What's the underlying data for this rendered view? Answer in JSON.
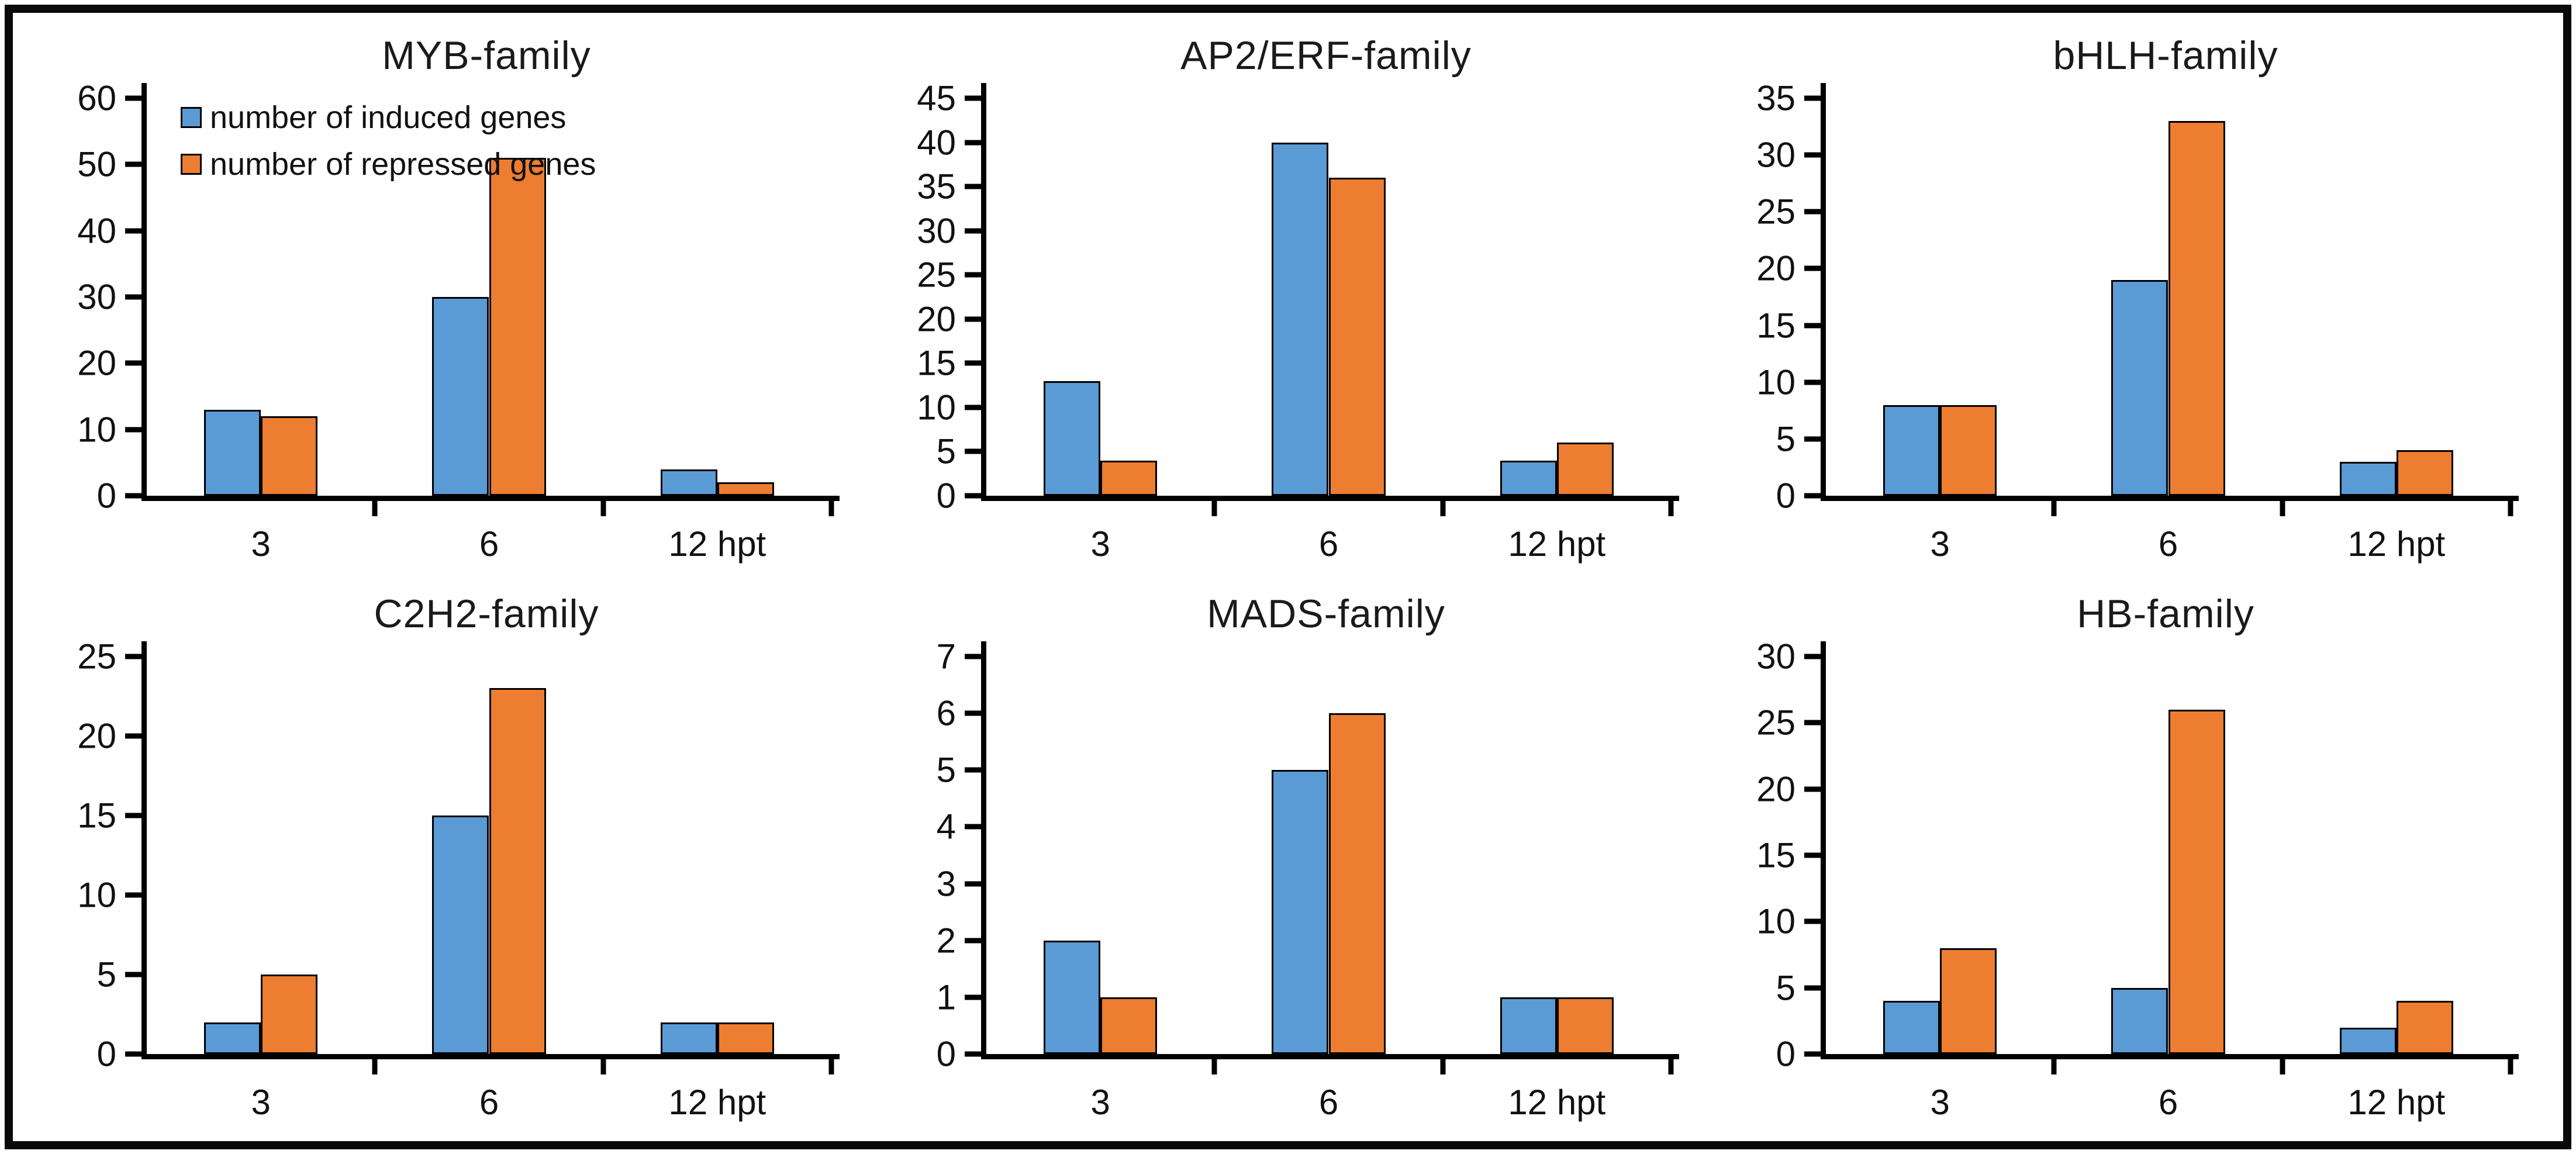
{
  "figure": {
    "background": "#ffffff",
    "border_color": "#0a0a0a"
  },
  "colors": {
    "induced": "#5B9BD5",
    "repressed": "#ED7D31",
    "bar_border": "#000000",
    "axis": "#000000"
  },
  "legend": {
    "position": "top-left-of-first-chart",
    "entries": [
      "number of induced genes",
      "number of repressed genes"
    ]
  },
  "chart_data": [
    {
      "type": "bar",
      "title": "MYB-family",
      "categories": [
        "3",
        "6",
        "12 hpt"
      ],
      "series": [
        {
          "name": "number of induced genes",
          "values": [
            13,
            30,
            4
          ]
        },
        {
          "name": "number of repressed genes",
          "values": [
            12,
            51,
            2
          ]
        }
      ],
      "xlabel": "",
      "ylabel": "",
      "ylim": [
        0,
        60
      ],
      "ytick_step": 10,
      "grid": false,
      "show_legend": true
    },
    {
      "type": "bar",
      "title": "AP2/ERF-family",
      "categories": [
        "3",
        "6",
        "12 hpt"
      ],
      "series": [
        {
          "name": "number of induced genes",
          "values": [
            13,
            40,
            4
          ]
        },
        {
          "name": "number of repressed genes",
          "values": [
            4,
            36,
            6
          ]
        }
      ],
      "xlabel": "",
      "ylabel": "",
      "ylim": [
        0,
        45
      ],
      "ytick_step": 5,
      "grid": false,
      "show_legend": false
    },
    {
      "type": "bar",
      "title": "bHLH-family",
      "categories": [
        "3",
        "6",
        "12 hpt"
      ],
      "series": [
        {
          "name": "number of induced genes",
          "values": [
            8,
            19,
            3
          ]
        },
        {
          "name": "number of repressed genes",
          "values": [
            8,
            33,
            4
          ]
        }
      ],
      "xlabel": "",
      "ylabel": "",
      "ylim": [
        0,
        35
      ],
      "ytick_step": 5,
      "grid": false,
      "show_legend": false
    },
    {
      "type": "bar",
      "title": "C2H2-family",
      "categories": [
        "3",
        "6",
        "12 hpt"
      ],
      "series": [
        {
          "name": "number of induced genes",
          "values": [
            2,
            15,
            2
          ]
        },
        {
          "name": "number of repressed genes",
          "values": [
            5,
            23,
            2
          ]
        }
      ],
      "xlabel": "",
      "ylabel": "",
      "ylim": [
        0,
        25
      ],
      "ytick_step": 5,
      "grid": false,
      "show_legend": false
    },
    {
      "type": "bar",
      "title": "MADS-family",
      "categories": [
        "3",
        "6",
        "12 hpt"
      ],
      "series": [
        {
          "name": "number of induced genes",
          "values": [
            2,
            5,
            1
          ]
        },
        {
          "name": "number of repressed genes",
          "values": [
            1,
            6,
            1
          ]
        }
      ],
      "xlabel": "",
      "ylabel": "",
      "ylim": [
        0,
        7
      ],
      "ytick_step": 1,
      "grid": false,
      "show_legend": false
    },
    {
      "type": "bar",
      "title": "HB-family",
      "categories": [
        "3",
        "6",
        "12 hpt"
      ],
      "series": [
        {
          "name": "number of induced genes",
          "values": [
            4,
            5,
            2
          ]
        },
        {
          "name": "number of repressed genes",
          "values": [
            8,
            26,
            4
          ]
        }
      ],
      "xlabel": "",
      "ylabel": "",
      "ylim": [
        0,
        30
      ],
      "ytick_step": 5,
      "grid": false,
      "show_legend": false
    }
  ]
}
